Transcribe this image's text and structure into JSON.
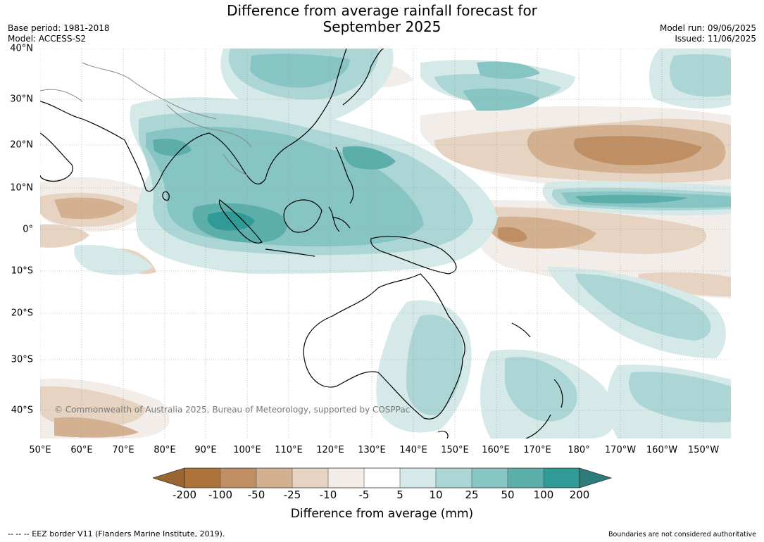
{
  "title_line1": "Difference from average rainfall forecast for",
  "title_line2": "September 2025",
  "base_period": "Base period: 1981-2018",
  "model": "Model: ACCESS-S2",
  "model_run": "Model run: 09/06/2025",
  "issued": "Issued: 11/06/2025",
  "copyright": "© Commonwealth of Australia 2025, Bureau of Meteorology, supported by COSPPac",
  "lat_labels": [
    "40°N",
    "30°N",
    "20°N",
    "10°N",
    "0°",
    "10°S",
    "20°S",
    "30°S",
    "40°S"
  ],
  "lon_labels": [
    "50°E",
    "60°E",
    "70°E",
    "80°E",
    "90°E",
    "100°E",
    "110°E",
    "120°E",
    "130°E",
    "140°E",
    "150°E",
    "160°E",
    "170°E",
    "180°",
    "170°W",
    "160°W",
    "150°W"
  ],
  "colorbar": {
    "labels": [
      "-200",
      "-100",
      "-50",
      "-25",
      "-10",
      "-5",
      "5",
      "10",
      "25",
      "50",
      "100",
      "200"
    ],
    "title": "Difference from average (mm)",
    "colors": {
      "under": "#9a6530",
      "c1": "#ad733b",
      "c2": "#bf8f63",
      "c3": "#d3b08f",
      "c4": "#e6d3c1",
      "c5": "#f2ede8",
      "c6": "#ffffff",
      "c7": "#d4e9e8",
      "c8": "#acd6d5",
      "c9": "#86c5c3",
      "c10": "#5caeab",
      "c11": "#2f9a96",
      "over": "#2b7c7a"
    }
  },
  "footer_left": "--  --  -- EEZ border V11 (Flanders Marine Institute, 2019).",
  "footer_right": "Boundaries are not considered authoritative"
}
